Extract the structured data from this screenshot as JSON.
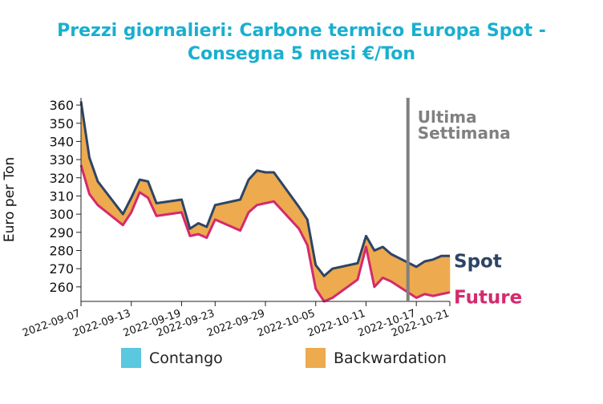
{
  "chart_data": {
    "type": "line",
    "title_lines": [
      "Prezzi giornalieri: Carbone termico Europa Spot -",
      "Consegna 5 mesi €/Ton"
    ],
    "xlabel": "",
    "ylabel": "Euro per Ton",
    "ylim": [
      252,
      364
    ],
    "yticks": [
      260,
      270,
      280,
      290,
      300,
      310,
      320,
      330,
      340,
      350,
      360
    ],
    "x_start": "2022-09-07",
    "x_end": "2022-10-21",
    "xticks": [
      "2022-09-07",
      "2022-09-13",
      "2022-09-19",
      "2022-09-23",
      "2022-09-29",
      "2022-10-05",
      "2022-10-11",
      "2022-10-17",
      "2022-10-21"
    ],
    "x": [
      "2022-09-07",
      "2022-09-08",
      "2022-09-09",
      "2022-09-12",
      "2022-09-13",
      "2022-09-14",
      "2022-09-15",
      "2022-09-16",
      "2022-09-19",
      "2022-09-20",
      "2022-09-21",
      "2022-09-22",
      "2022-09-23",
      "2022-09-26",
      "2022-09-27",
      "2022-09-28",
      "2022-09-29",
      "2022-09-30",
      "2022-10-03",
      "2022-10-04",
      "2022-10-05",
      "2022-10-06",
      "2022-10-07",
      "2022-10-10",
      "2022-10-11",
      "2022-10-12",
      "2022-10-13",
      "2022-10-14",
      "2022-10-17",
      "2022-10-18",
      "2022-10-19",
      "2022-10-20",
      "2022-10-21"
    ],
    "series": [
      {
        "name": "Spot",
        "color": "#2e4466",
        "values": [
          362,
          331,
          318,
          300,
          309,
          319,
          318,
          306,
          308,
          292,
          295,
          293,
          305,
          308,
          319,
          324,
          323,
          323,
          304,
          297,
          272,
          266,
          270,
          273,
          288,
          280,
          282,
          278,
          271,
          274,
          275,
          277,
          277
        ]
      },
      {
        "name": "Future",
        "color": "#d42a6d",
        "values": [
          327,
          311,
          305,
          294,
          301,
          312,
          309,
          299,
          301,
          288,
          289,
          287,
          297,
          291,
          301,
          305,
          306,
          307,
          292,
          283,
          259,
          252,
          254,
          264,
          282,
          260,
          265,
          263,
          254,
          256,
          255,
          256,
          257
        ]
      }
    ],
    "fill_legend": [
      {
        "label": "Contango",
        "color": "#5ac8de"
      },
      {
        "label": "Backwardation",
        "color": "#edaa4e"
      }
    ],
    "vline": {
      "x": "2022-10-16",
      "label_lines": [
        "Ultima",
        "Settimana"
      ],
      "color": "#808080"
    },
    "grid": false,
    "legend_position": "bottom"
  }
}
